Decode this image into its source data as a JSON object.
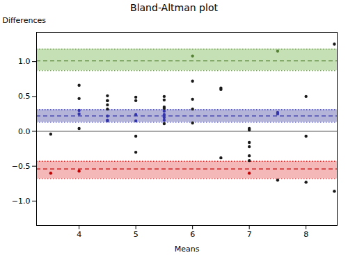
{
  "chart_data": {
    "type": "scatter",
    "title": "Bland-Altman plot",
    "xlabel": "Means",
    "ylabel": "Differences",
    "xlim": [
      3.25,
      8.55
    ],
    "ylim": [
      -1.35,
      1.42
    ],
    "xticks": [
      4,
      5,
      6,
      7,
      8
    ],
    "yticks": [
      {
        "value": -1.0,
        "label": "−1.0"
      },
      {
        "value": -0.5,
        "label": "−0.5"
      },
      {
        "value": 0.0,
        "label": "0.0"
      },
      {
        "value": 0.5,
        "label": "0.5"
      },
      {
        "value": 1.0,
        "label": "1.0"
      }
    ],
    "bands": [
      {
        "y": 1.01,
        "ci_lower": 0.87,
        "ci_upper": 1.18,
        "color": "#c5e0b4",
        "line_color": "#548235"
      },
      {
        "y": 0.22,
        "ci_lower": 0.13,
        "ci_upper": 0.31,
        "color": "#b4b4d8",
        "line_color": "#3333aa"
      },
      {
        "y": -0.54,
        "ci_lower": -0.68,
        "ci_upper": -0.43,
        "color": "#f4b8b8",
        "line_color": "#c00000"
      }
    ],
    "zero_line": {
      "y": 0,
      "color": "#555555"
    },
    "x": [
      3.5,
      3.5,
      4.0,
      4.0,
      4.0,
      4.0,
      4.0,
      4.0,
      4.5,
      4.5,
      4.5,
      4.5,
      4.5,
      4.5,
      4.5,
      4.5,
      5.0,
      5.0,
      5.0,
      5.0,
      5.0,
      5.0,
      5.5,
      5.5,
      5.5,
      5.5,
      5.5,
      5.5,
      5.5,
      5.5,
      5.5,
      6.0,
      6.0,
      6.0,
      6.0,
      6.0,
      6.5,
      6.5,
      6.5,
      7.0,
      7.0,
      7.0,
      7.0,
      7.0,
      7.0,
      7.0,
      7.5,
      7.5,
      7.5,
      7.5,
      8.0,
      8.0,
      8.0,
      8.5,
      8.5
    ],
    "values": [
      -0.04,
      -0.6,
      0.25,
      0.3,
      0.47,
      0.04,
      0.66,
      -0.57,
      0.38,
      0.44,
      0.51,
      0.44,
      0.22,
      0.32,
      0.16,
      0.15,
      0.49,
      0.15,
      -0.07,
      -0.3,
      0.24,
      0.44,
      0.45,
      0.5,
      0.35,
      0.33,
      0.24,
      0.29,
      0.2,
      0.16,
      0.11,
      0.72,
      0.46,
      0.32,
      0.12,
      1.08,
      0.6,
      0.62,
      -0.38,
      -0.16,
      0.04,
      0.02,
      -0.22,
      -0.35,
      -0.42,
      -0.6,
      0.27,
      0.25,
      -0.7,
      1.15,
      0.5,
      -0.07,
      -0.73,
      -0.86,
      1.25
    ],
    "colors": [
      "#1a1a1a",
      "#c00000",
      "#3333aa",
      "#3333aa",
      "#1a1a1a",
      "#1a1a1a",
      "#1a1a1a",
      "#c00000",
      "#1a1a1a",
      "#1a1a1a",
      "#1a1a1a",
      "#1a1a1a",
      "#3333aa",
      "#1a1a1a",
      "#3333aa",
      "#3333aa",
      "#1a1a1a",
      "#3333aa",
      "#1a1a1a",
      "#1a1a1a",
      "#3333aa",
      "#1a1a1a",
      "#1a1a1a",
      "#1a1a1a",
      "#1a1a1a",
      "#1a1a1a",
      "#3333aa",
      "#3333aa",
      "#3333aa",
      "#3333aa",
      "#1a1a1a",
      "#1a1a1a",
      "#1a1a1a",
      "#1a1a1a",
      "#1a1a1a",
      "#548235",
      "#1a1a1a",
      "#1a1a1a",
      "#1a1a1a",
      "#1a1a1a",
      "#1a1a1a",
      "#1a1a1a",
      "#1a1a1a",
      "#1a1a1a",
      "#1a1a1a",
      "#c00000",
      "#3333aa",
      "#3333aa",
      "#1a1a1a",
      "#548235",
      "#1a1a1a",
      "#1a1a1a",
      "#1a1a1a",
      "#1a1a1a",
      "#1a1a1a"
    ]
  }
}
